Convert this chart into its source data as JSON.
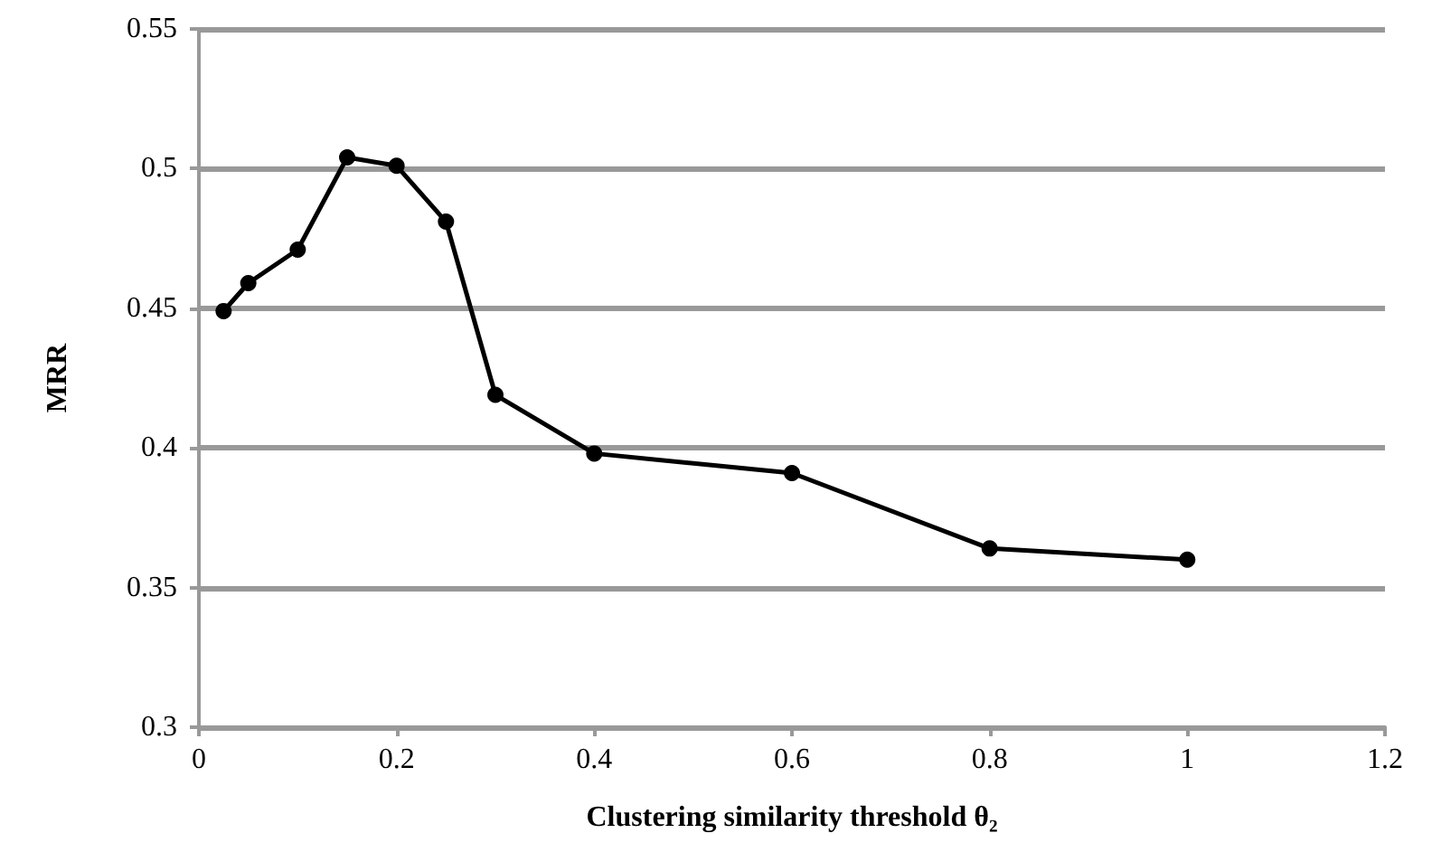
{
  "chart_data": {
    "type": "line",
    "xlabel": "Clustering similarity threshold θ₂",
    "ylabel": "MRR",
    "x": [
      0.025,
      0.05,
      0.1,
      0.15,
      0.2,
      0.25,
      0.3,
      0.4,
      0.6,
      0.8,
      1.0
    ],
    "series": [
      {
        "color": "#000000",
        "values": [
          0.449,
          0.459,
          0.471,
          0.504,
          0.501,
          0.481,
          0.419,
          0.398,
          0.391,
          0.364,
          0.36
        ]
      }
    ],
    "xlim": [
      0,
      1.2
    ],
    "xticks": [
      0,
      0.2,
      0.4,
      0.6,
      0.8,
      1,
      1.2
    ],
    "ylim": [
      0.3,
      0.55
    ],
    "yticks": [
      0.3,
      0.35,
      0.4,
      0.45,
      0.5,
      0.55
    ],
    "grid": "y",
    "marker": "circle",
    "line_style": "solid"
  }
}
